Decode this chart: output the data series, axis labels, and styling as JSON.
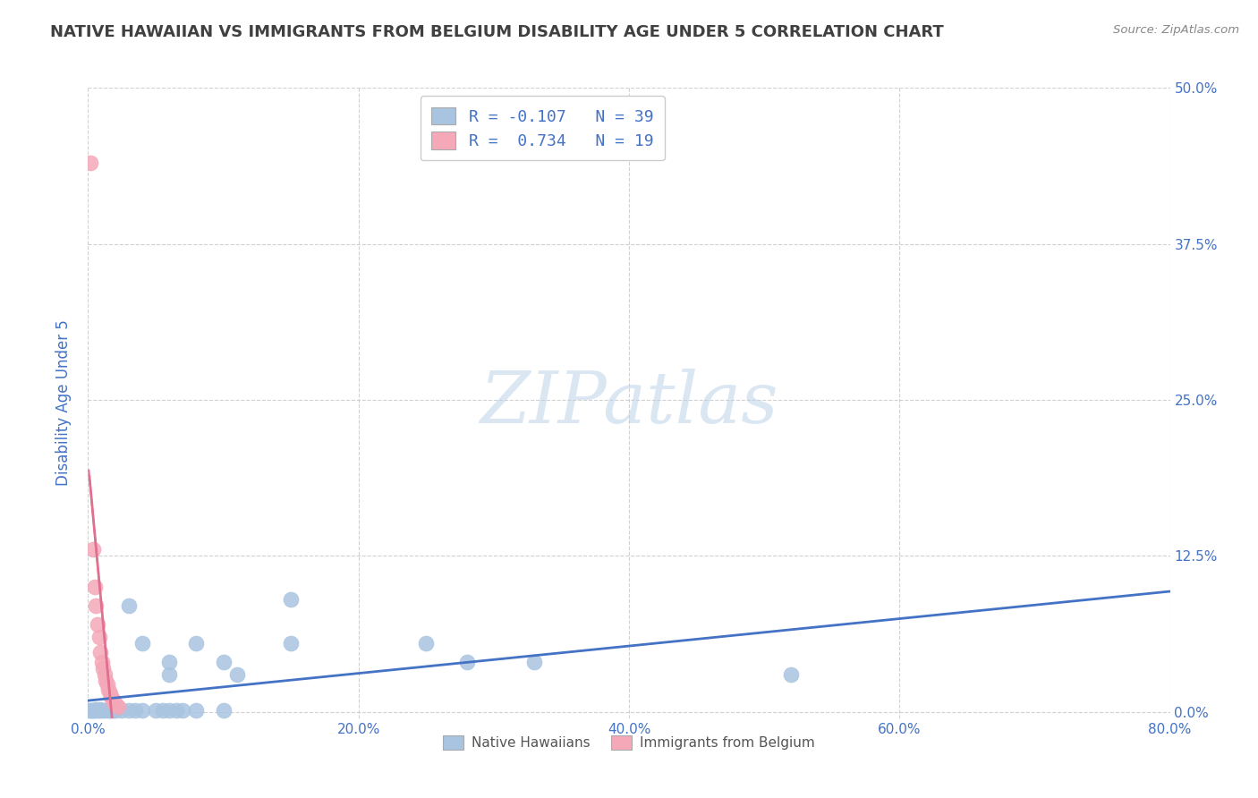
{
  "title": "NATIVE HAWAIIAN VS IMMIGRANTS FROM BELGIUM DISABILITY AGE UNDER 5 CORRELATION CHART",
  "source": "Source: ZipAtlas.com",
  "ylabel": "Disability Age Under 5",
  "watermark": "ZIPatlas",
  "xlim": [
    0.0,
    0.8
  ],
  "ylim": [
    -0.005,
    0.5
  ],
  "xticks": [
    0.0,
    0.2,
    0.4,
    0.6,
    0.8
  ],
  "xtick_labels": [
    "0.0%",
    "20.0%",
    "40.0%",
    "60.0%",
    "80.0%"
  ],
  "yticks": [
    0.0,
    0.125,
    0.25,
    0.375,
    0.5
  ],
  "ytick_labels": [
    "0.0%",
    "12.5%",
    "25.0%",
    "37.5%",
    "50.0%"
  ],
  "blue_R": -0.107,
  "blue_N": 39,
  "pink_R": 0.734,
  "pink_N": 19,
  "blue_color": "#a8c4e0",
  "pink_color": "#f4a8b8",
  "blue_line_color": "#4472c4",
  "pink_line_color": "#e07090",
  "blue_scatter": [
    [
      0.001,
      0.001
    ],
    [
      0.002,
      0.001
    ],
    [
      0.003,
      0.001
    ],
    [
      0.004,
      0.001
    ],
    [
      0.005,
      0.001
    ],
    [
      0.006,
      0.002
    ],
    [
      0.007,
      0.001
    ],
    [
      0.008,
      0.001
    ],
    [
      0.009,
      0.002
    ],
    [
      0.01,
      0.001
    ],
    [
      0.012,
      0.001
    ],
    [
      0.015,
      0.001
    ],
    [
      0.016,
      0.001
    ],
    [
      0.018,
      0.001
    ],
    [
      0.02,
      0.001
    ],
    [
      0.025,
      0.001
    ],
    [
      0.03,
      0.001
    ],
    [
      0.035,
      0.001
    ],
    [
      0.04,
      0.001
    ],
    [
      0.05,
      0.001
    ],
    [
      0.055,
      0.001
    ],
    [
      0.06,
      0.001
    ],
    [
      0.065,
      0.001
    ],
    [
      0.07,
      0.001
    ],
    [
      0.08,
      0.001
    ],
    [
      0.1,
      0.001
    ],
    [
      0.03,
      0.085
    ],
    [
      0.15,
      0.09
    ],
    [
      0.04,
      0.055
    ],
    [
      0.08,
      0.055
    ],
    [
      0.15,
      0.055
    ],
    [
      0.25,
      0.055
    ],
    [
      0.06,
      0.04
    ],
    [
      0.1,
      0.04
    ],
    [
      0.28,
      0.04
    ],
    [
      0.33,
      0.04
    ],
    [
      0.06,
      0.03
    ],
    [
      0.11,
      0.03
    ],
    [
      0.52,
      0.03
    ]
  ],
  "pink_scatter": [
    [
      0.002,
      0.44
    ],
    [
      0.004,
      0.13
    ],
    [
      0.005,
      0.1
    ],
    [
      0.006,
      0.085
    ],
    [
      0.007,
      0.07
    ],
    [
      0.008,
      0.06
    ],
    [
      0.009,
      0.048
    ],
    [
      0.01,
      0.04
    ],
    [
      0.011,
      0.035
    ],
    [
      0.012,
      0.03
    ],
    [
      0.013,
      0.025
    ],
    [
      0.014,
      0.022
    ],
    [
      0.015,
      0.018
    ],
    [
      0.016,
      0.015
    ],
    [
      0.017,
      0.012
    ],
    [
      0.018,
      0.01
    ],
    [
      0.019,
      0.008
    ],
    [
      0.02,
      0.006
    ],
    [
      0.022,
      0.004
    ]
  ],
  "background_color": "#ffffff",
  "grid_color": "#cccccc",
  "title_color": "#404040",
  "axis_color": "#4472c4",
  "tick_label_color": "#4472c4"
}
